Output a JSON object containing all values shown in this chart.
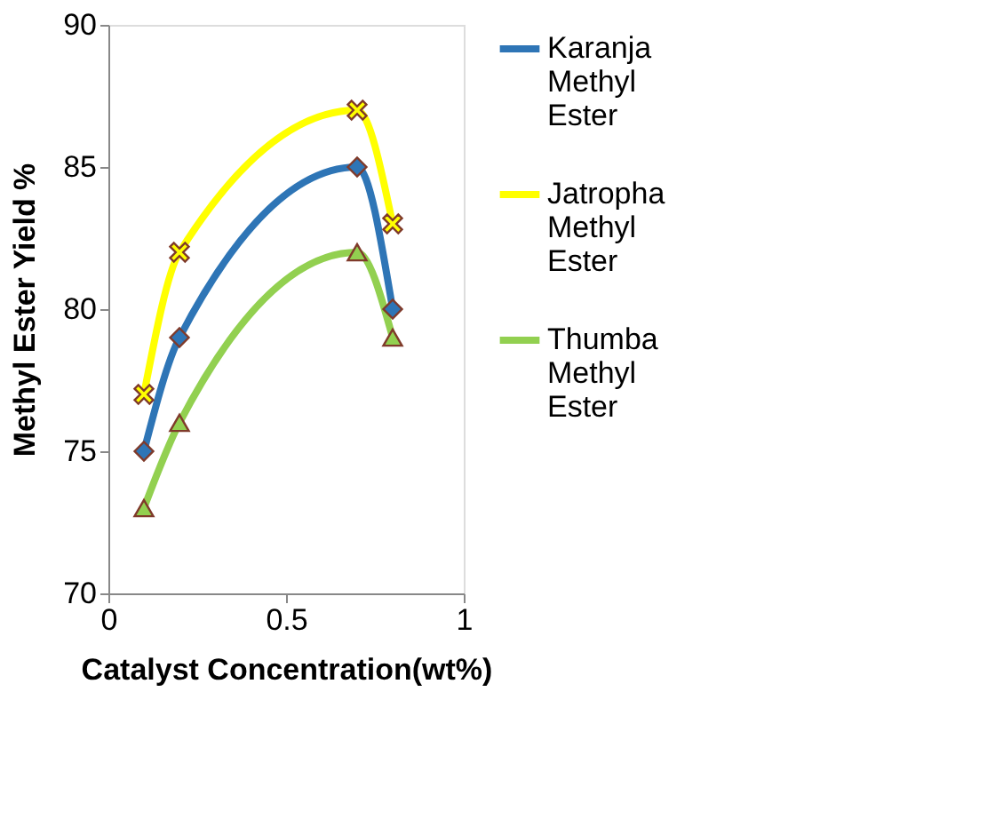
{
  "chart_data": {
    "type": "line",
    "xlabel": "Catalyst Concentration(wt%)",
    "ylabel": "Methyl Ester Yield %",
    "x": [
      0.1,
      0.2,
      0.7,
      0.8
    ],
    "series": [
      {
        "name": "Karanja Methyl Ester",
        "color": "#2e75b6",
        "marker": "diamond",
        "values": [
          75,
          79,
          85,
          80
        ]
      },
      {
        "name": "Jatropha Methyl Ester",
        "color": "#ffff00",
        "marker": "cross",
        "values": [
          77,
          82,
          87,
          83
        ]
      },
      {
        "name": "Thumba Methyl Ester",
        "color": "#92d050",
        "marker": "triangle",
        "values": [
          73,
          76,
          82,
          79
        ]
      }
    ],
    "xlim": [
      0,
      1
    ],
    "xticks": [
      0,
      0.5,
      1
    ],
    "ylim": [
      70,
      90
    ],
    "yticks": [
      70,
      75,
      80,
      85,
      90
    ],
    "grid": false,
    "legend": "right",
    "line_style": "solid"
  }
}
